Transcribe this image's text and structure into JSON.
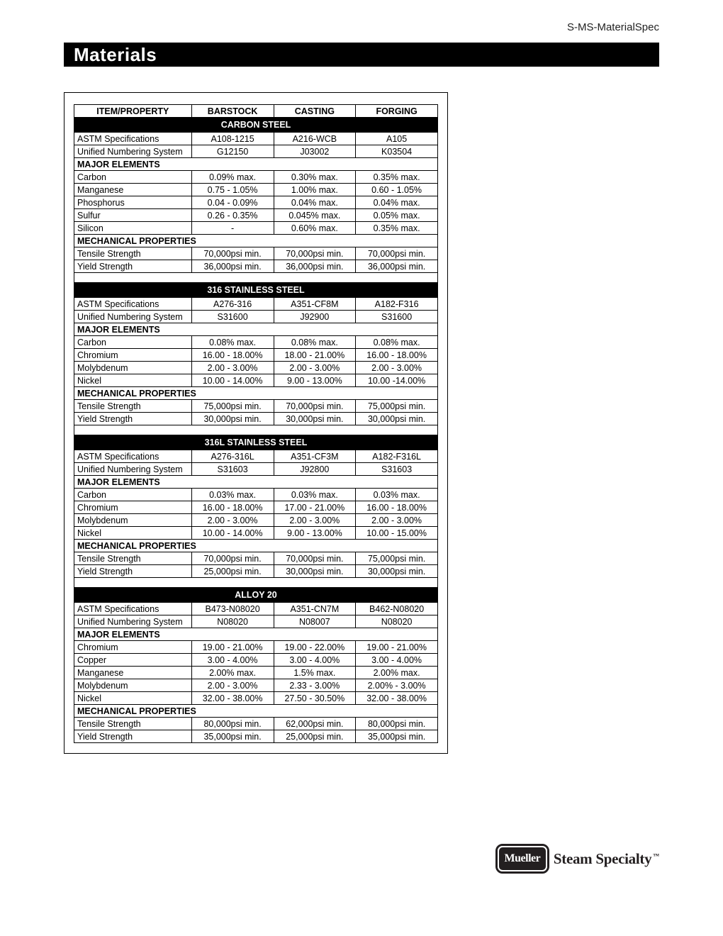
{
  "doc_code": "S-MS-MaterialSpec",
  "page_title": "Materials",
  "columns": [
    "ITEM/PROPERTY",
    "BARSTOCK",
    "CASTING",
    "FORGING"
  ],
  "label_major_elements": "MAJOR ELEMENTS",
  "label_mechanical_properties": "MECHANICAL PROPERTIES",
  "materials": [
    {
      "name": "CARBON STEEL",
      "specs": [
        [
          "ASTM Specifications",
          "A108-1215",
          "A216-WCB",
          "A105"
        ],
        [
          "Unified Numbering System",
          "G12150",
          "J03002",
          "K03504"
        ]
      ],
      "elements": [
        [
          "Carbon",
          "0.09% max.",
          "0.30% max.",
          "0.35% max."
        ],
        [
          "Manganese",
          "0.75 - 1.05%",
          "1.00% max.",
          "0.60 - 1.05%"
        ],
        [
          "Phosphorus",
          "0.04 - 0.09%",
          "0.04% max.",
          "0.04% max."
        ],
        [
          "Sulfur",
          "0.26 - 0.35%",
          "0.045% max.",
          "0.05% max."
        ],
        [
          "Silicon",
          "-",
          "0.60% max.",
          "0.35% max."
        ]
      ],
      "mech": [
        [
          "Tensile Strength",
          "70,000psi min.",
          "70,000psi min.",
          "70,000psi min."
        ],
        [
          "Yield Strength",
          "36,000psi min.",
          "36,000psi min.",
          "36,000psi min."
        ]
      ]
    },
    {
      "name": "316 STAINLESS STEEL",
      "specs": [
        [
          "ASTM Specifications",
          "A276-316",
          "A351-CF8M",
          "A182-F316"
        ],
        [
          "Unified Numbering System",
          "S31600",
          "J92900",
          "S31600"
        ]
      ],
      "elements": [
        [
          "Carbon",
          "0.08% max.",
          "0.08% max.",
          "0.08% max."
        ],
        [
          "Chromium",
          "16.00 - 18.00%",
          "18.00 - 21.00%",
          "16.00 - 18.00%"
        ],
        [
          "Molybdenum",
          "2.00 - 3.00%",
          "2.00 - 3.00%",
          "2.00 - 3.00%"
        ],
        [
          "Nickel",
          "10.00 - 14.00%",
          "9.00 - 13.00%",
          "10.00 -14.00%"
        ]
      ],
      "mech": [
        [
          "Tensile Strength",
          "75,000psi min.",
          "70,000psi min.",
          "75,000psi min."
        ],
        [
          "Yield Strength",
          "30,000psi min.",
          "30,000psi min.",
          "30,000psi min."
        ]
      ]
    },
    {
      "name": "316L STAINLESS STEEL",
      "specs": [
        [
          "ASTM Specifications",
          "A276-316L",
          "A351-CF3M",
          "A182-F316L"
        ],
        [
          "Unified Numbering System",
          "S31603",
          "J92800",
          "S31603"
        ]
      ],
      "elements": [
        [
          "Carbon",
          "0.03% max.",
          "0.03% max.",
          "0.03% max."
        ],
        [
          "Chromium",
          "16.00 - 18.00%",
          "17.00 - 21.00%",
          "16.00 - 18.00%"
        ],
        [
          "Molybdenum",
          "2.00 - 3.00%",
          "2.00 - 3.00%",
          "2.00 - 3.00%"
        ],
        [
          "Nickel",
          "10.00 - 14.00%",
          "9.00 - 13.00%",
          "10.00 - 15.00%"
        ]
      ],
      "mech": [
        [
          "Tensile Strength",
          "70,000psi min.",
          "70,000psi min.",
          "75,000psi min."
        ],
        [
          "Yield Strength",
          "25,000psi min.",
          "30,000psi min.",
          "30,000psi min."
        ]
      ]
    },
    {
      "name": "ALLOY 20",
      "specs": [
        [
          "ASTM Specifications",
          "B473-N08020",
          "A351-CN7M",
          "B462-N08020"
        ],
        [
          "Unified Numbering System",
          "N08020",
          "N08007",
          "N08020"
        ]
      ],
      "elements": [
        [
          "Chromium",
          "19.00 - 21.00%",
          "19.00 - 22.00%",
          "19.00 - 21.00%"
        ],
        [
          "Copper",
          "3.00 - 4.00%",
          "3.00 - 4.00%",
          "3.00 - 4.00%"
        ],
        [
          "Manganese",
          "2.00% max.",
          "1.5% max.",
          "2.00% max."
        ],
        [
          "Molybdenum",
          "2.00 - 3.00%",
          "2.33 - 3.00%",
          "2.00% - 3.00%"
        ],
        [
          "Nickel",
          "32.00 - 38.00%",
          "27.50 - 30.50%",
          "32.00 - 38.00%"
        ]
      ],
      "mech": [
        [
          "Tensile Strength",
          "80,000psi min.",
          "62,000psi min.",
          "80,000psi min."
        ],
        [
          "Yield Strength",
          "35,000psi min.",
          "25,000psi min.",
          "35,000psi min."
        ]
      ]
    }
  ],
  "logo": {
    "badge_text": "Mueller",
    "suffix_text": "Steam Specialty",
    "tm": "™"
  },
  "colors": {
    "black": "#000000",
    "white": "#ffffff",
    "logo_dark": "#231f20"
  }
}
